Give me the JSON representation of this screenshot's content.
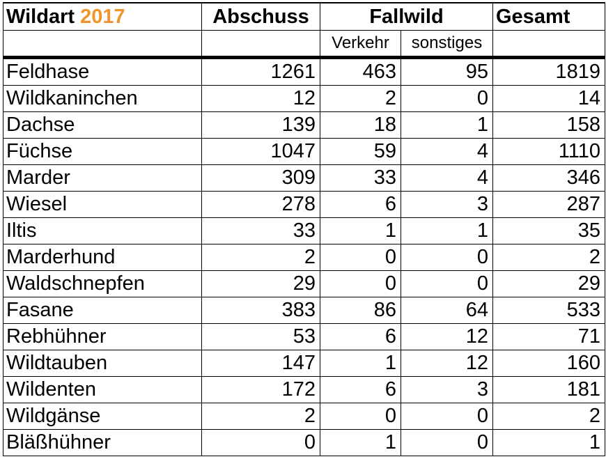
{
  "header": {
    "wildart_label": "Wildart",
    "year": "2017",
    "abschuss": "Abschuss",
    "fallwild": "Fallwild",
    "gesamt": "Gesamt",
    "verkehr": "Verkehr",
    "sonstiges": "sonstiges"
  },
  "colors": {
    "year": "#f0952c"
  },
  "rows": [
    {
      "name": "Feldhase",
      "abschuss": "1261",
      "verkehr": "463",
      "sonstiges": "95",
      "gesamt": "1819"
    },
    {
      "name": "Wildkaninchen",
      "abschuss": "12",
      "verkehr": "2",
      "sonstiges": "0",
      "gesamt": "14"
    },
    {
      "name": "Dachse",
      "abschuss": "139",
      "verkehr": "18",
      "sonstiges": "1",
      "gesamt": "158"
    },
    {
      "name": "Füchse",
      "abschuss": "1047",
      "verkehr": "59",
      "sonstiges": "4",
      "gesamt": "1110"
    },
    {
      "name": "Marder",
      "abschuss": "309",
      "verkehr": "33",
      "sonstiges": "4",
      "gesamt": "346"
    },
    {
      "name": "Wiesel",
      "abschuss": "278",
      "verkehr": "6",
      "sonstiges": "3",
      "gesamt": "287"
    },
    {
      "name": "Iltis",
      "abschuss": "33",
      "verkehr": "1",
      "sonstiges": "1",
      "gesamt": "35"
    },
    {
      "name": "Marderhund",
      "abschuss": "2",
      "verkehr": "0",
      "sonstiges": "0",
      "gesamt": "2"
    },
    {
      "name": "Waldschnepfen",
      "abschuss": "29",
      "verkehr": "0",
      "sonstiges": "0",
      "gesamt": "29"
    },
    {
      "name": "Fasane",
      "abschuss": "383",
      "verkehr": "86",
      "sonstiges": "64",
      "gesamt": "533"
    },
    {
      "name": "Rebhühner",
      "abschuss": "53",
      "verkehr": "6",
      "sonstiges": "12",
      "gesamt": "71"
    },
    {
      "name": "Wildtauben",
      "abschuss": "147",
      "verkehr": "1",
      "sonstiges": "12",
      "gesamt": "160"
    },
    {
      "name": "Wildenten",
      "abschuss": "172",
      "verkehr": "6",
      "sonstiges": "3",
      "gesamt": "181"
    },
    {
      "name": "Wildgänse",
      "abschuss": "2",
      "verkehr": "0",
      "sonstiges": "0",
      "gesamt": "2"
    },
    {
      "name": "Bläßhühner",
      "abschuss": "0",
      "verkehr": "1",
      "sonstiges": "0",
      "gesamt": "1"
    }
  ]
}
